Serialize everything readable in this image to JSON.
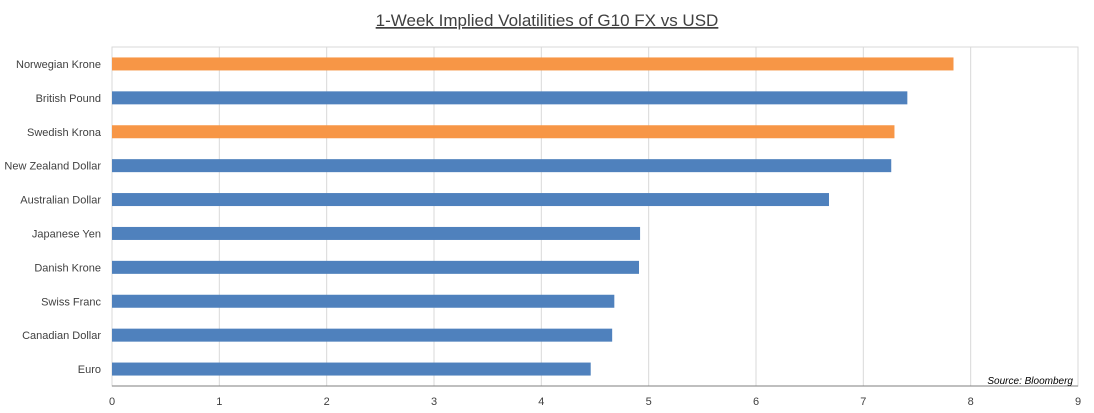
{
  "chart_data": {
    "type": "bar",
    "orientation": "horizontal",
    "title": "1-Week Implied Volatilities of G10 FX vs USD",
    "xlabel": "",
    "ylabel": "",
    "xlim": [
      0,
      9
    ],
    "xticks": [
      0,
      1,
      2,
      3,
      4,
      5,
      6,
      7,
      8,
      9
    ],
    "grid": true,
    "legend": "none",
    "categories": [
      "Norwegian Krone",
      "British Pound",
      "Swedish Krona",
      "New Zealand Dollar",
      "Australian Dollar",
      "Japanese Yen",
      "Danish Krone",
      "Swiss Franc",
      "Canadian Dollar",
      "Euro"
    ],
    "values": [
      7.84,
      7.41,
      7.29,
      7.26,
      6.68,
      4.92,
      4.91,
      4.68,
      4.66,
      4.46
    ],
    "highlight": [
      true,
      false,
      true,
      false,
      false,
      false,
      false,
      false,
      false,
      false
    ],
    "colors": {
      "default": "#4f81bd",
      "highlight": "#f79646"
    },
    "annotation": "Source: Bloomberg"
  }
}
